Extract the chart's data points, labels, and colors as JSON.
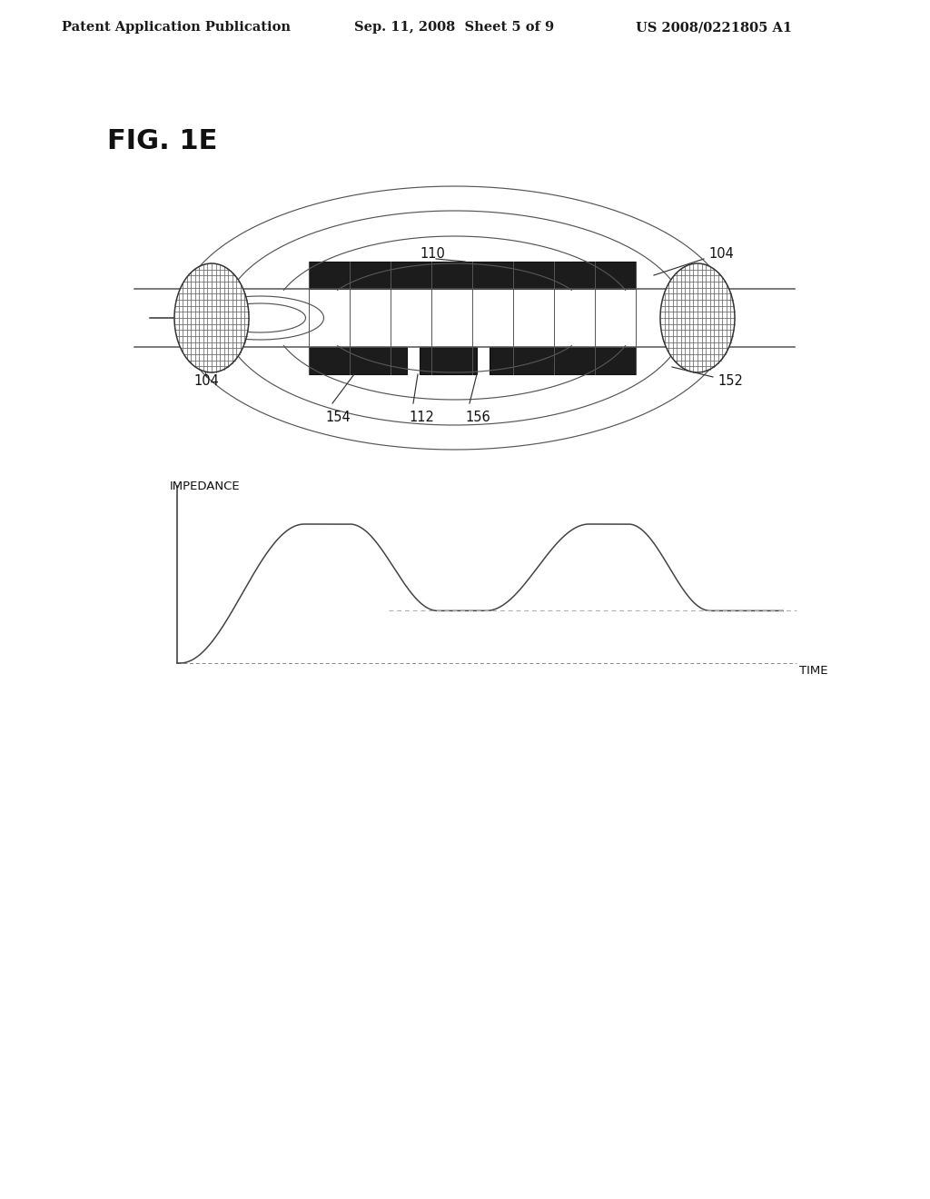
{
  "bg_color": "#ffffff",
  "header_left": "Patent Application Publication",
  "header_center": "Sep. 11, 2008  Sheet 5 of 9",
  "header_right": "US 2008/0221805 A1",
  "fig_label": "FIG. 1E",
  "impedance_label": "IMPEDANCE",
  "time_label": "TIME"
}
